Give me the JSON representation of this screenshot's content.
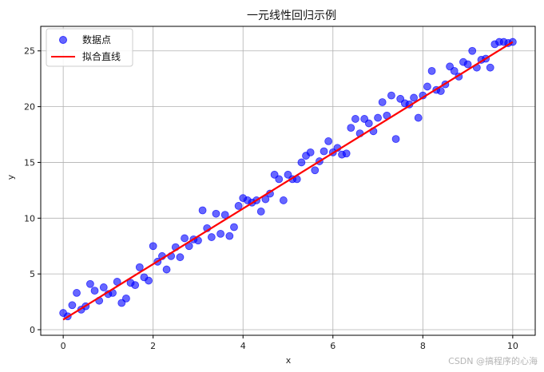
{
  "chart_data": {
    "type": "scatter",
    "title": "一元线性回归示例",
    "xlabel": "x",
    "ylabel": "y",
    "xlim": [
      -0.5,
      10.5
    ],
    "ylim": [
      -0.5,
      27.2
    ],
    "xticks": [
      0,
      2,
      4,
      6,
      8,
      10
    ],
    "yticks": [
      0,
      5,
      10,
      15,
      20,
      25
    ],
    "grid": true,
    "legend_position": "top-left",
    "series": [
      {
        "name": "数据点",
        "kind": "scatter",
        "color": "#0000ff",
        "x": [
          0.0,
          0.1,
          0.2,
          0.3,
          0.4,
          0.5,
          0.6,
          0.7,
          0.8,
          0.9,
          1.0,
          1.1,
          1.2,
          1.3,
          1.4,
          1.5,
          1.6,
          1.7,
          1.8,
          1.9,
          2.0,
          2.1,
          2.2,
          2.3,
          2.4,
          2.5,
          2.6,
          2.7,
          2.8,
          2.9,
          3.0,
          3.1,
          3.2,
          3.3,
          3.4,
          3.5,
          3.6,
          3.7,
          3.8,
          3.9,
          4.0,
          4.1,
          4.2,
          4.3,
          4.4,
          4.5,
          4.6,
          4.7,
          4.8,
          4.9,
          5.0,
          5.1,
          5.2,
          5.3,
          5.4,
          5.5,
          5.6,
          5.7,
          5.8,
          5.9,
          6.0,
          6.1,
          6.2,
          6.3,
          6.4,
          6.5,
          6.6,
          6.7,
          6.8,
          6.9,
          7.0,
          7.1,
          7.2,
          7.3,
          7.4,
          7.5,
          7.6,
          7.7,
          7.8,
          7.9,
          8.0,
          8.1,
          8.2,
          8.3,
          8.4,
          8.5,
          8.6,
          8.7,
          8.8,
          8.9,
          9.0,
          9.1,
          9.2,
          9.3,
          9.4,
          9.5,
          9.6,
          9.7,
          9.8,
          9.9,
          10.0
        ],
        "y": [
          1.5,
          1.2,
          2.2,
          3.3,
          1.8,
          2.1,
          4.1,
          3.5,
          2.6,
          3.8,
          3.2,
          3.3,
          4.3,
          2.4,
          2.8,
          4.2,
          4.0,
          5.6,
          4.7,
          4.4,
          7.5,
          6.1,
          6.6,
          5.4,
          6.6,
          7.4,
          6.5,
          8.2,
          7.5,
          8.1,
          8.0,
          10.7,
          9.1,
          8.3,
          10.4,
          8.6,
          10.3,
          8.4,
          9.2,
          11.1,
          11.8,
          11.6,
          11.4,
          11.6,
          10.6,
          11.7,
          12.2,
          13.9,
          13.5,
          11.6,
          13.9,
          13.5,
          13.5,
          15.0,
          15.6,
          15.9,
          14.3,
          15.1,
          16.0,
          16.9,
          15.9,
          16.3,
          15.7,
          15.8,
          18.1,
          18.9,
          17.6,
          18.9,
          18.5,
          17.8,
          19.0,
          20.4,
          19.2,
          21.0,
          17.1,
          20.7,
          20.3,
          20.2,
          20.8,
          19.0,
          21.0,
          21.8,
          23.2,
          21.5,
          21.4,
          22.0,
          23.6,
          23.2,
          22.7,
          24.0,
          23.8,
          25.0,
          23.5,
          24.2,
          24.3,
          23.5,
          25.6,
          25.8,
          25.8,
          25.7,
          25.8
        ]
      },
      {
        "name": "拟合直线",
        "kind": "line",
        "color": "#ff0000",
        "x": [
          0,
          10
        ],
        "y": [
          0.9,
          25.8
        ]
      }
    ]
  },
  "watermark": "CSDN @搞程序的心海"
}
